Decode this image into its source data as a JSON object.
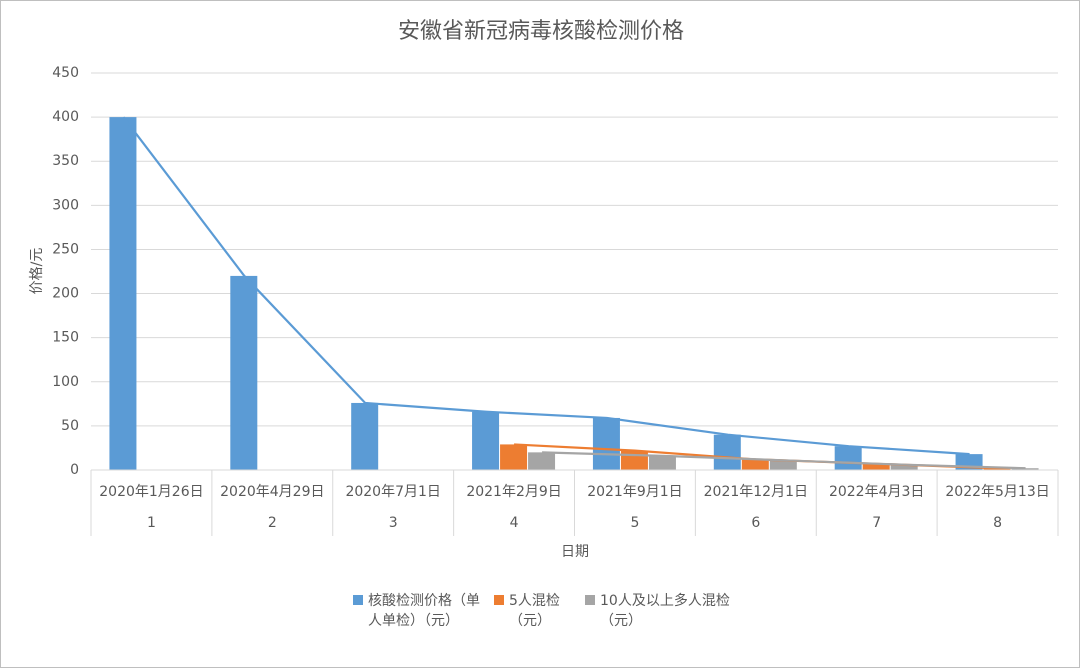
{
  "chart_data": {
    "type": "bar",
    "title": "安徽省新冠病毒核酸检测价格",
    "x_label": "日期",
    "y_label": "价格/元",
    "categories": [
      "2020年1月26日",
      "2020年4月29日",
      "2020年7月1日",
      "2021年2月9日",
      "2021年9月1日",
      "2021年12月1日",
      "2022年4月3日",
      "2022年5月13日"
    ],
    "category_numbers": [
      "1",
      "2",
      "3",
      "4",
      "5",
      "6",
      "7",
      "8"
    ],
    "series": [
      {
        "name": "核酸检测价格（单人单检）（元）",
        "color": "#5b9bd5",
        "values": [
          400,
          220,
          76,
          66,
          59,
          40,
          27,
          18
        ]
      },
      {
        "name": "5人混检（元）",
        "color": "#ed7d31",
        "values": [
          null,
          null,
          null,
          29,
          22,
          12,
          7,
          2
        ]
      },
      {
        "name": "10人及以上多人混检（元）",
        "color": "#a5a5a5",
        "values": [
          null,
          null,
          null,
          20,
          16,
          11,
          6,
          2
        ]
      }
    ],
    "ylim": [
      0,
      450
    ],
    "yticks": [
      0,
      50,
      100,
      150,
      200,
      250,
      300,
      350,
      400,
      450
    ],
    "grid": true
  }
}
